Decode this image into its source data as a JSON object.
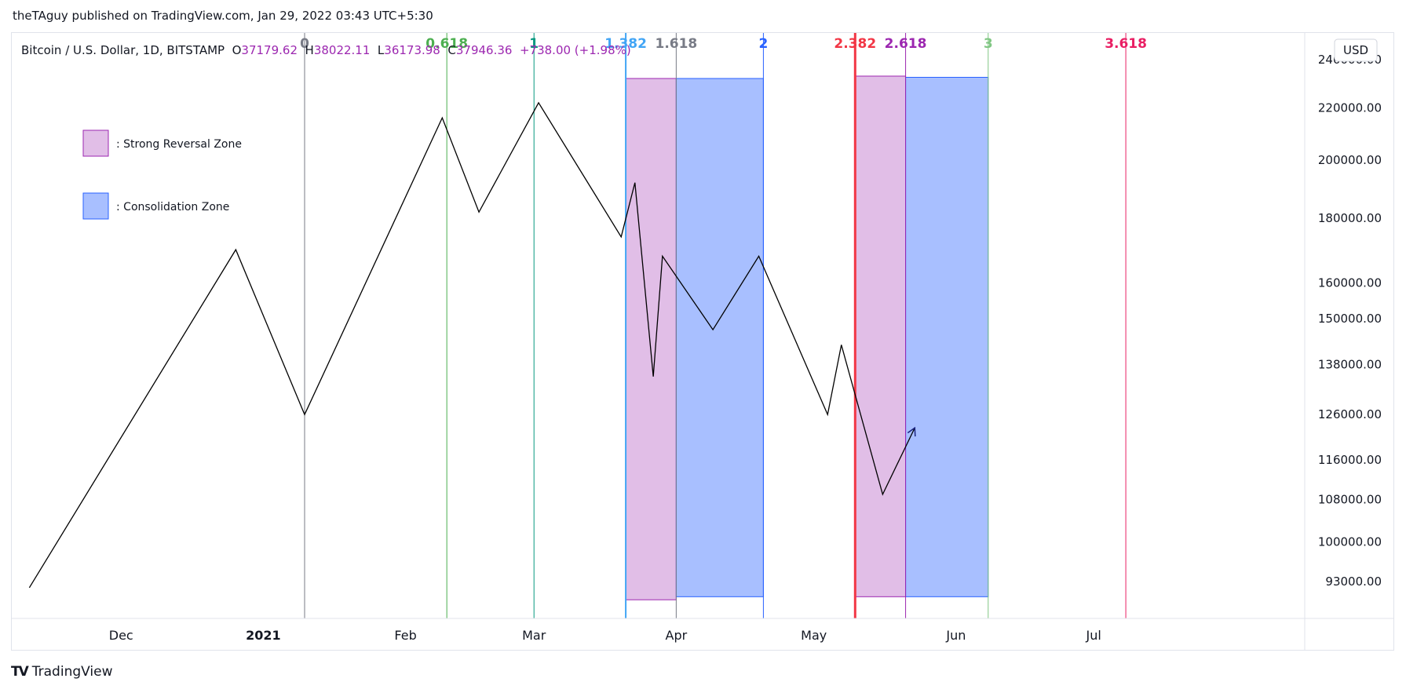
{
  "attribution": "theTAguy published on TradingView.com, Jan 29, 2022 03:43 UTC+5:30",
  "footer": {
    "logo_icon": "tradingview-logo-icon",
    "brand": "TradingView"
  },
  "header": {
    "symbol": "Bitcoin / U.S. Dollar, 1D, BITSTAMP",
    "o_label": "O",
    "o_value": "37179.62",
    "h_label": "H",
    "h_value": "38022.11",
    "l_label": "L",
    "l_value": "36173.98",
    "c_label": "C",
    "c_value": "37946.36",
    "change": "+738.00 (+1.98%)",
    "value_color": "#9c27b0"
  },
  "currency_button": "USD",
  "colors": {
    "reversal_fill": "#e1bee7",
    "reversal_border": "#9c27b0",
    "consolidation_fill": "#a8bfff",
    "consolidation_border": "#2962ff",
    "path": "#000000",
    "grid_border": "#e0e3eb"
  },
  "chart_data": {
    "type": "line",
    "title": "Bitcoin / U.S. Dollar, 1D, BITSTAMP",
    "y_scale": "log",
    "ylim": [
      87000,
      252000
    ],
    "xlim": [
      "2020-11-07",
      "2021-08-16"
    ],
    "y_ticks": [
      240000,
      220000,
      200000,
      180000,
      160000,
      150000,
      138000,
      126000,
      116000,
      108000,
      100000,
      93000
    ],
    "y_tick_labels": [
      "240000.00",
      "220000.00",
      "200000.00",
      "180000.00",
      "160000.00",
      "150000.00",
      "138000.00",
      "126000.00",
      "116000.00",
      "108000.00",
      "100000.00",
      "93000.00"
    ],
    "x_ticks": [
      {
        "date": "2020-12-01",
        "label": "Dec",
        "bold": false
      },
      {
        "date": "2021-01-01",
        "label": "2021",
        "bold": true
      },
      {
        "date": "2021-02-01",
        "label": "Feb",
        "bold": false
      },
      {
        "date": "2021-03-01",
        "label": "Mar",
        "bold": false
      },
      {
        "date": "2021-04-01",
        "label": "Apr",
        "bold": false
      },
      {
        "date": "2021-05-01",
        "label": "May",
        "bold": false
      },
      {
        "date": "2021-06-01",
        "label": "Jun",
        "bold": false
      },
      {
        "date": "2021-07-01",
        "label": "Jul",
        "bold": false
      }
    ],
    "fib_time_lines": [
      {
        "label": "0",
        "date": "2021-01-10",
        "color": "#787b86",
        "width": 1
      },
      {
        "label": "0.618",
        "date": "2021-02-10",
        "color": "#4caf50",
        "width": 1
      },
      {
        "label": "1",
        "date": "2021-03-01",
        "color": "#089981",
        "width": 1
      },
      {
        "label": "1.382",
        "date": "2021-03-21",
        "color": "#42a5f5",
        "width": 2
      },
      {
        "label": "1.618",
        "date": "2021-04-01",
        "color": "#787b86",
        "width": 1
      },
      {
        "label": "2",
        "date": "2021-04-20",
        "color": "#2962ff",
        "width": 1
      },
      {
        "label": "2.382",
        "date": "2021-05-10",
        "color": "#f23645",
        "width": 3
      },
      {
        "label": "2.618",
        "date": "2021-05-21",
        "color": "#9c27b0",
        "width": 1
      },
      {
        "label": "3",
        "date": "2021-06-08",
        "color": "#81c784",
        "width": 1
      },
      {
        "label": "3.618",
        "date": "2021-07-08",
        "color": "#e91e63",
        "width": 1
      }
    ],
    "zones": [
      {
        "type": "reversal",
        "start": "2021-03-21",
        "end": "2021-04-01",
        "top": 232000,
        "bottom": 90000
      },
      {
        "type": "consolidation",
        "start": "2021-04-01",
        "end": "2021-04-20",
        "top": 232000,
        "bottom": 90500
      },
      {
        "type": "reversal",
        "start": "2021-05-10",
        "end": "2021-05-21",
        "top": 233000,
        "bottom": 90500
      },
      {
        "type": "consolidation",
        "start": "2021-05-21",
        "end": "2021-06-08",
        "top": 232500,
        "bottom": 90500
      }
    ],
    "legend": [
      {
        "type": "reversal",
        "label": ": Strong Reversal Zone"
      },
      {
        "type": "consolidation",
        "label": ": Consolidation Zone"
      }
    ],
    "path_points": [
      {
        "date": "2020-11-11",
        "value": 92000
      },
      {
        "date": "2020-12-26",
        "value": 170000
      },
      {
        "date": "2021-01-10",
        "value": 126000
      },
      {
        "date": "2021-02-09",
        "value": 216000
      },
      {
        "date": "2021-02-17",
        "value": 182000
      },
      {
        "date": "2021-03-02",
        "value": 222000
      },
      {
        "date": "2021-03-20",
        "value": 174000
      },
      {
        "date": "2021-03-23",
        "value": 192000
      },
      {
        "date": "2021-03-27",
        "value": 135000
      },
      {
        "date": "2021-03-29",
        "value": 168000
      },
      {
        "date": "2021-04-09",
        "value": 147000
      },
      {
        "date": "2021-04-19",
        "value": 168000
      },
      {
        "date": "2021-05-04",
        "value": 126000
      },
      {
        "date": "2021-05-07",
        "value": 143000
      },
      {
        "date": "2021-05-16",
        "value": 109000
      },
      {
        "date": "2021-05-23",
        "value": 123000
      }
    ]
  }
}
